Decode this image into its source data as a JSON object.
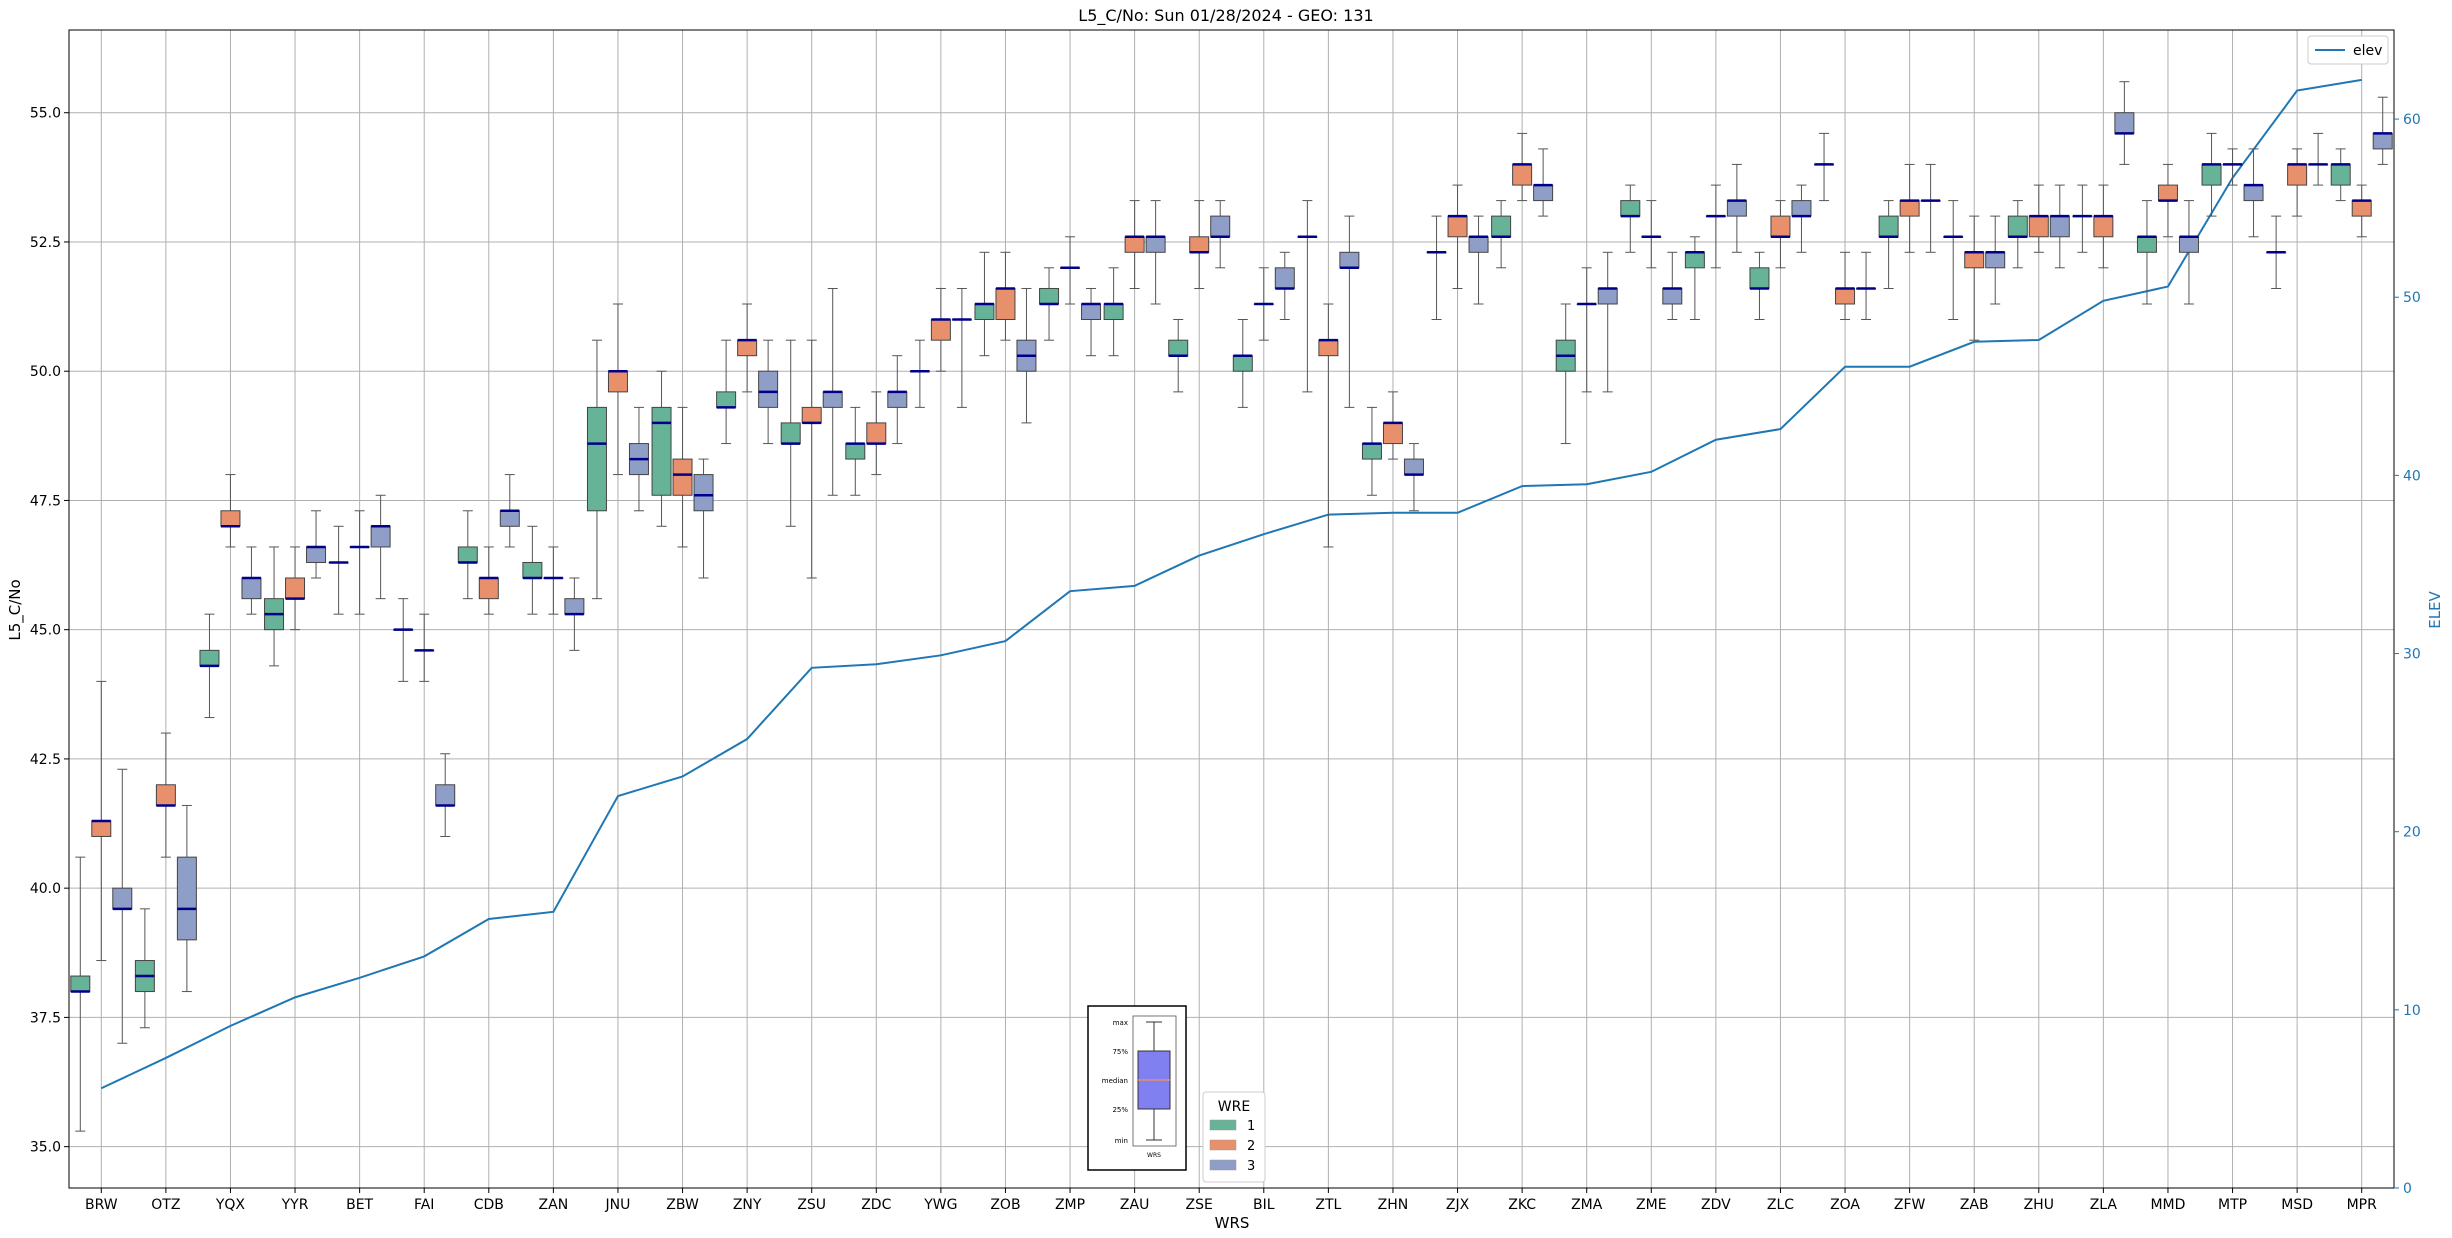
{
  "chart_data": {
    "type": "box",
    "title": "L5_C/No: Sun 01/28/2024 - GEO: 131",
    "xlabel": "WRS",
    "ylabel": "L5_C/No",
    "y2label": "ELEV",
    "ylim": [
      34.2,
      56.6
    ],
    "y2lim": [
      0,
      65
    ],
    "yticks": [
      "35.0",
      "37.5",
      "40.0",
      "42.5",
      "45.0",
      "47.5",
      "50.0",
      "52.5",
      "55.0"
    ],
    "y2ticks": [
      "0",
      "10",
      "20",
      "30",
      "40",
      "50",
      "60"
    ],
    "grid": true,
    "categories": [
      "BRW",
      "OTZ",
      "YQX",
      "YYR",
      "BET",
      "FAI",
      "CDB",
      "ZAN",
      "JNU",
      "ZBW",
      "ZNY",
      "ZSU",
      "ZDC",
      "YWG",
      "ZOB",
      "ZMP",
      "ZAU",
      "ZSE",
      "BIL",
      "ZTL",
      "ZHN",
      "ZJX",
      "ZKC",
      "ZMA",
      "ZME",
      "ZDV",
      "ZLC",
      "ZOA",
      "ZFW",
      "ZAB",
      "ZHU",
      "ZLA",
      "MMD",
      "MTP",
      "MSD",
      "MPR"
    ],
    "wre_colors": {
      "1": "#66b398",
      "2": "#e8906c",
      "3": "#8f9ec6"
    },
    "median_color": "#00008b",
    "elev_color": "#1f77b4",
    "legend_top": {
      "label": "elev",
      "placement": "top-right"
    },
    "legend_wre": {
      "title": "WRE",
      "entries": [
        "1",
        "2",
        "3"
      ],
      "placement": "lower-center"
    },
    "boxplot_key": {
      "labels": [
        "max",
        "75%",
        "median",
        "25%",
        "min"
      ],
      "xlabel": "WRS"
    },
    "elev": [
      5.6,
      7.3,
      9.1,
      10.7,
      11.8,
      13.0,
      15.1,
      15.5,
      22.0,
      23.1,
      25.2,
      29.2,
      29.4,
      29.9,
      30.7,
      33.5,
      33.8,
      35.5,
      36.7,
      37.8,
      37.9,
      37.9,
      39.4,
      39.5,
      40.2,
      42.0,
      42.6,
      46.1,
      46.1,
      47.5,
      47.6,
      49.8,
      50.6,
      56.7,
      61.6,
      62.2
    ],
    "boxes": [
      {
        "station": "BRW",
        "wre": 1,
        "min": 35.3,
        "q1": 38.0,
        "med": 38.0,
        "q3": 38.3,
        "max": 40.6
      },
      {
        "station": "BRW",
        "wre": 2,
        "min": 38.6,
        "q1": 41.0,
        "med": 41.3,
        "q3": 41.3,
        "max": 44.0
      },
      {
        "station": "BRW",
        "wre": 3,
        "min": 37.0,
        "q1": 39.6,
        "med": 39.6,
        "q3": 40.0,
        "max": 42.3
      },
      {
        "station": "OTZ",
        "wre": 1,
        "min": 37.3,
        "q1": 38.0,
        "med": 38.3,
        "q3": 38.6,
        "max": 39.6
      },
      {
        "station": "OTZ",
        "wre": 2,
        "min": 40.6,
        "q1": 41.6,
        "med": 41.6,
        "q3": 42.0,
        "max": 43.0
      },
      {
        "station": "OTZ",
        "wre": 3,
        "min": 38.0,
        "q1": 39.0,
        "med": 39.6,
        "q3": 40.6,
        "max": 41.6
      },
      {
        "station": "YQX",
        "wre": 1,
        "min": 43.3,
        "q1": 44.3,
        "med": 44.3,
        "q3": 44.6,
        "max": 45.3
      },
      {
        "station": "YQX",
        "wre": 2,
        "min": 46.6,
        "q1": 47.0,
        "med": 47.0,
        "q3": 47.3,
        "max": 48.0
      },
      {
        "station": "YQX",
        "wre": 3,
        "min": 45.3,
        "q1": 45.6,
        "med": 46.0,
        "q3": 46.0,
        "max": 46.6
      },
      {
        "station": "YYR",
        "wre": 1,
        "min": 44.3,
        "q1": 45.0,
        "med": 45.3,
        "q3": 45.6,
        "max": 46.6
      },
      {
        "station": "YYR",
        "wre": 2,
        "min": 45.0,
        "q1": 45.6,
        "med": 45.6,
        "q3": 46.0,
        "max": 46.6
      },
      {
        "station": "YYR",
        "wre": 3,
        "min": 46.0,
        "q1": 46.3,
        "med": 46.6,
        "q3": 46.6,
        "max": 47.3
      },
      {
        "station": "BET",
        "wre": 1,
        "min": 45.3,
        "q1": 46.3,
        "med": 46.3,
        "q3": 46.3,
        "max": 47.0
      },
      {
        "station": "BET",
        "wre": 2,
        "min": 45.3,
        "q1": 46.6,
        "med": 46.6,
        "q3": 46.6,
        "max": 47.3
      },
      {
        "station": "BET",
        "wre": 3,
        "min": 45.6,
        "q1": 46.6,
        "med": 47.0,
        "q3": 47.0,
        "max": 47.6
      },
      {
        "station": "FAI",
        "wre": 1,
        "min": 44.0,
        "q1": 45.0,
        "med": 45.0,
        "q3": 45.0,
        "max": 45.6
      },
      {
        "station": "FAI",
        "wre": 2,
        "min": 44.0,
        "q1": 44.6,
        "med": 44.6,
        "q3": 44.6,
        "max": 45.3
      },
      {
        "station": "FAI",
        "wre": 3,
        "min": 41.0,
        "q1": 41.6,
        "med": 41.6,
        "q3": 42.0,
        "max": 42.6
      },
      {
        "station": "CDB",
        "wre": 1,
        "min": 45.6,
        "q1": 46.3,
        "med": 46.3,
        "q3": 46.6,
        "max": 47.3
      },
      {
        "station": "CDB",
        "wre": 2,
        "min": 45.3,
        "q1": 45.6,
        "med": 46.0,
        "q3": 46.0,
        "max": 46.6
      },
      {
        "station": "CDB",
        "wre": 3,
        "min": 46.6,
        "q1": 47.0,
        "med": 47.3,
        "q3": 47.3,
        "max": 48.0
      },
      {
        "station": "ZAN",
        "wre": 1,
        "min": 45.3,
        "q1": 46.0,
        "med": 46.0,
        "q3": 46.3,
        "max": 47.0
      },
      {
        "station": "ZAN",
        "wre": 2,
        "min": 45.3,
        "q1": 46.0,
        "med": 46.0,
        "q3": 46.0,
        "max": 46.6
      },
      {
        "station": "ZAN",
        "wre": 3,
        "min": 44.6,
        "q1": 45.3,
        "med": 45.3,
        "q3": 45.6,
        "max": 46.0
      },
      {
        "station": "JNU",
        "wre": 1,
        "min": 45.6,
        "q1": 47.3,
        "med": 48.6,
        "q3": 49.3,
        "max": 50.6
      },
      {
        "station": "JNU",
        "wre": 2,
        "min": 48.0,
        "q1": 49.6,
        "med": 50.0,
        "q3": 50.0,
        "max": 51.3
      },
      {
        "station": "JNU",
        "wre": 3,
        "min": 47.3,
        "q1": 48.0,
        "med": 48.3,
        "q3": 48.6,
        "max": 49.3
      },
      {
        "station": "ZBW",
        "wre": 1,
        "min": 47.0,
        "q1": 47.6,
        "med": 49.0,
        "q3": 49.3,
        "max": 50.0
      },
      {
        "station": "ZBW",
        "wre": 2,
        "min": 46.6,
        "q1": 47.6,
        "med": 48.0,
        "q3": 48.3,
        "max": 49.3
      },
      {
        "station": "ZBW",
        "wre": 3,
        "min": 46.0,
        "q1": 47.3,
        "med": 47.6,
        "q3": 48.0,
        "max": 48.3
      },
      {
        "station": "ZNY",
        "wre": 1,
        "min": 48.6,
        "q1": 49.3,
        "med": 49.3,
        "q3": 49.6,
        "max": 50.6
      },
      {
        "station": "ZNY",
        "wre": 2,
        "min": 49.6,
        "q1": 50.3,
        "med": 50.6,
        "q3": 50.6,
        "max": 51.3
      },
      {
        "station": "ZNY",
        "wre": 3,
        "min": 48.6,
        "q1": 49.3,
        "med": 49.6,
        "q3": 50.0,
        "max": 50.6
      },
      {
        "station": "ZSU",
        "wre": 1,
        "min": 47.0,
        "q1": 48.6,
        "med": 48.6,
        "q3": 49.0,
        "max": 50.6
      },
      {
        "station": "ZSU",
        "wre": 2,
        "min": 46.0,
        "q1": 49.0,
        "med": 49.0,
        "q3": 49.3,
        "max": 50.6
      },
      {
        "station": "ZSU",
        "wre": 3,
        "min": 47.6,
        "q1": 49.3,
        "med": 49.6,
        "q3": 49.6,
        "max": 51.6
      },
      {
        "station": "ZDC",
        "wre": 1,
        "min": 47.6,
        "q1": 48.3,
        "med": 48.6,
        "q3": 48.6,
        "max": 49.3
      },
      {
        "station": "ZDC",
        "wre": 2,
        "min": 48.0,
        "q1": 48.6,
        "med": 48.6,
        "q3": 49.0,
        "max": 49.6
      },
      {
        "station": "ZDC",
        "wre": 3,
        "min": 48.6,
        "q1": 49.3,
        "med": 49.6,
        "q3": 49.6,
        "max": 50.3
      },
      {
        "station": "YWG",
        "wre": 1,
        "min": 49.3,
        "q1": 50.0,
        "med": 50.0,
        "q3": 50.0,
        "max": 50.6
      },
      {
        "station": "YWG",
        "wre": 2,
        "min": 50.0,
        "q1": 50.6,
        "med": 51.0,
        "q3": 51.0,
        "max": 51.6
      },
      {
        "station": "YWG",
        "wre": 3,
        "min": 49.3,
        "q1": 51.0,
        "med": 51.0,
        "q3": 51.0,
        "max": 51.6
      },
      {
        "station": "ZOB",
        "wre": 1,
        "min": 50.3,
        "q1": 51.0,
        "med": 51.3,
        "q3": 51.3,
        "max": 52.3
      },
      {
        "station": "ZOB",
        "wre": 2,
        "min": 50.6,
        "q1": 51.0,
        "med": 51.6,
        "q3": 51.6,
        "max": 52.3
      },
      {
        "station": "ZOB",
        "wre": 3,
        "min": 49.0,
        "q1": 50.0,
        "med": 50.3,
        "q3": 50.6,
        "max": 51.6
      },
      {
        "station": "ZMP",
        "wre": 1,
        "min": 50.6,
        "q1": 51.3,
        "med": 51.3,
        "q3": 51.6,
        "max": 52.0
      },
      {
        "station": "ZMP",
        "wre": 2,
        "min": 51.3,
        "q1": 52.0,
        "med": 52.0,
        "q3": 52.0,
        "max": 52.6
      },
      {
        "station": "ZMP",
        "wre": 3,
        "min": 50.3,
        "q1": 51.0,
        "med": 51.3,
        "q3": 51.3,
        "max": 51.6
      },
      {
        "station": "ZAU",
        "wre": 1,
        "min": 50.3,
        "q1": 51.0,
        "med": 51.3,
        "q3": 51.3,
        "max": 52.0
      },
      {
        "station": "ZAU",
        "wre": 2,
        "min": 51.6,
        "q1": 52.3,
        "med": 52.6,
        "q3": 52.6,
        "max": 53.3
      },
      {
        "station": "ZAU",
        "wre": 3,
        "min": 51.3,
        "q1": 52.3,
        "med": 52.6,
        "q3": 52.6,
        "max": 53.3
      },
      {
        "station": "ZSE",
        "wre": 1,
        "min": 49.6,
        "q1": 50.3,
        "med": 50.3,
        "q3": 50.6,
        "max": 51.0
      },
      {
        "station": "ZSE",
        "wre": 2,
        "min": 51.6,
        "q1": 52.3,
        "med": 52.3,
        "q3": 52.6,
        "max": 53.3
      },
      {
        "station": "ZSE",
        "wre": 3,
        "min": 52.0,
        "q1": 52.6,
        "med": 52.6,
        "q3": 53.0,
        "max": 53.3
      },
      {
        "station": "BIL",
        "wre": 1,
        "min": 49.3,
        "q1": 50.0,
        "med": 50.3,
        "q3": 50.3,
        "max": 51.0
      },
      {
        "station": "BIL",
        "wre": 2,
        "min": 50.6,
        "q1": 51.3,
        "med": 51.3,
        "q3": 51.3,
        "max": 52.0
      },
      {
        "station": "BIL",
        "wre": 3,
        "min": 51.0,
        "q1": 51.6,
        "med": 51.6,
        "q3": 52.0,
        "max": 52.3
      },
      {
        "station": "ZTL",
        "wre": 1,
        "min": 49.6,
        "q1": 52.6,
        "med": 52.6,
        "q3": 52.6,
        "max": 53.3
      },
      {
        "station": "ZTL",
        "wre": 2,
        "min": 46.6,
        "q1": 50.3,
        "med": 50.6,
        "q3": 50.6,
        "max": 51.3
      },
      {
        "station": "ZTL",
        "wre": 3,
        "min": 49.3,
        "q1": 52.0,
        "med": 52.0,
        "q3": 52.3,
        "max": 53.0
      },
      {
        "station": "ZHN",
        "wre": 1,
        "min": 47.6,
        "q1": 48.3,
        "med": 48.6,
        "q3": 48.6,
        "max": 49.3
      },
      {
        "station": "ZHN",
        "wre": 2,
        "min": 48.3,
        "q1": 48.6,
        "med": 49.0,
        "q3": 49.0,
        "max": 49.6
      },
      {
        "station": "ZHN",
        "wre": 3,
        "min": 47.3,
        "q1": 48.0,
        "med": 48.0,
        "q3": 48.3,
        "max": 48.6
      },
      {
        "station": "ZJX",
        "wre": 1,
        "min": 51.0,
        "q1": 52.3,
        "med": 52.3,
        "q3": 52.3,
        "max": 53.0
      },
      {
        "station": "ZJX",
        "wre": 2,
        "min": 51.6,
        "q1": 52.6,
        "med": 53.0,
        "q3": 53.0,
        "max": 53.6
      },
      {
        "station": "ZJX",
        "wre": 3,
        "min": 51.3,
        "q1": 52.3,
        "med": 52.6,
        "q3": 52.6,
        "max": 53.0
      },
      {
        "station": "ZKC",
        "wre": 1,
        "min": 52.0,
        "q1": 52.6,
        "med": 52.6,
        "q3": 53.0,
        "max": 53.3
      },
      {
        "station": "ZKC",
        "wre": 2,
        "min": 53.3,
        "q1": 53.6,
        "med": 54.0,
        "q3": 54.0,
        "max": 54.6
      },
      {
        "station": "ZKC",
        "wre": 3,
        "min": 53.0,
        "q1": 53.3,
        "med": 53.6,
        "q3": 53.6,
        "max": 54.3
      },
      {
        "station": "ZMA",
        "wre": 1,
        "min": 48.6,
        "q1": 50.0,
        "med": 50.3,
        "q3": 50.6,
        "max": 51.3
      },
      {
        "station": "ZMA",
        "wre": 2,
        "min": 49.6,
        "q1": 51.3,
        "med": 51.3,
        "q3": 51.3,
        "max": 52.0
      },
      {
        "station": "ZMA",
        "wre": 3,
        "min": 49.6,
        "q1": 51.3,
        "med": 51.6,
        "q3": 51.6,
        "max": 52.3
      },
      {
        "station": "ZME",
        "wre": 1,
        "min": 52.3,
        "q1": 53.0,
        "med": 53.0,
        "q3": 53.3,
        "max": 53.6
      },
      {
        "station": "ZME",
        "wre": 2,
        "min": 52.0,
        "q1": 52.6,
        "med": 52.6,
        "q3": 52.6,
        "max": 53.3
      },
      {
        "station": "ZME",
        "wre": 3,
        "min": 51.0,
        "q1": 51.3,
        "med": 51.6,
        "q3": 51.6,
        "max": 52.3
      },
      {
        "station": "ZDV",
        "wre": 1,
        "min": 51.0,
        "q1": 52.0,
        "med": 52.3,
        "q3": 52.3,
        "max": 52.6
      },
      {
        "station": "ZDV",
        "wre": 2,
        "min": 52.0,
        "q1": 53.0,
        "med": 53.0,
        "q3": 53.0,
        "max": 53.6
      },
      {
        "station": "ZDV",
        "wre": 3,
        "min": 52.3,
        "q1": 53.0,
        "med": 53.3,
        "q3": 53.3,
        "max": 54.0
      },
      {
        "station": "ZLC",
        "wre": 1,
        "min": 51.0,
        "q1": 51.6,
        "med": 51.6,
        "q3": 52.0,
        "max": 52.3
      },
      {
        "station": "ZLC",
        "wre": 2,
        "min": 52.0,
        "q1": 52.6,
        "med": 52.6,
        "q3": 53.0,
        "max": 53.3
      },
      {
        "station": "ZLC",
        "wre": 3,
        "min": 52.3,
        "q1": 53.0,
        "med": 53.0,
        "q3": 53.3,
        "max": 53.6
      },
      {
        "station": "ZOA",
        "wre": 1,
        "min": 53.3,
        "q1": 54.0,
        "med": 54.0,
        "q3": 54.0,
        "max": 54.6
      },
      {
        "station": "ZOA",
        "wre": 2,
        "min": 51.0,
        "q1": 51.3,
        "med": 51.6,
        "q3": 51.6,
        "max": 52.3
      },
      {
        "station": "ZOA",
        "wre": 3,
        "min": 51.0,
        "q1": 51.6,
        "med": 51.6,
        "q3": 51.6,
        "max": 52.3
      },
      {
        "station": "ZFW",
        "wre": 1,
        "min": 51.6,
        "q1": 52.6,
        "med": 52.6,
        "q3": 53.0,
        "max": 53.3
      },
      {
        "station": "ZFW",
        "wre": 2,
        "min": 52.3,
        "q1": 53.0,
        "med": 53.3,
        "q3": 53.3,
        "max": 54.0
      },
      {
        "station": "ZFW",
        "wre": 3,
        "min": 52.3,
        "q1": 53.3,
        "med": 53.3,
        "q3": 53.3,
        "max": 54.0
      },
      {
        "station": "ZAB",
        "wre": 1,
        "min": 51.0,
        "q1": 52.6,
        "med": 52.6,
        "q3": 52.6,
        "max": 53.3
      },
      {
        "station": "ZAB",
        "wre": 2,
        "min": 50.6,
        "q1": 52.0,
        "med": 52.3,
        "q3": 52.3,
        "max": 53.0
      },
      {
        "station": "ZAB",
        "wre": 3,
        "min": 51.3,
        "q1": 52.0,
        "med": 52.3,
        "q3": 52.3,
        "max": 53.0
      },
      {
        "station": "ZHU",
        "wre": 1,
        "min": 52.0,
        "q1": 52.6,
        "med": 52.6,
        "q3": 53.0,
        "max": 53.3
      },
      {
        "station": "ZHU",
        "wre": 2,
        "min": 52.3,
        "q1": 52.6,
        "med": 53.0,
        "q3": 53.0,
        "max": 53.6
      },
      {
        "station": "ZHU",
        "wre": 3,
        "min": 52.0,
        "q1": 52.6,
        "med": 53.0,
        "q3": 53.0,
        "max": 53.6
      },
      {
        "station": "ZLA",
        "wre": 1,
        "min": 52.3,
        "q1": 53.0,
        "med": 53.0,
        "q3": 53.0,
        "max": 53.6
      },
      {
        "station": "ZLA",
        "wre": 2,
        "min": 52.0,
        "q1": 52.6,
        "med": 53.0,
        "q3": 53.0,
        "max": 53.6
      },
      {
        "station": "ZLA",
        "wre": 3,
        "min": 54.0,
        "q1": 54.6,
        "med": 54.6,
        "q3": 55.0,
        "max": 55.6
      },
      {
        "station": "MMD",
        "wre": 1,
        "min": 51.3,
        "q1": 52.3,
        "med": 52.6,
        "q3": 52.6,
        "max": 53.3
      },
      {
        "station": "MMD",
        "wre": 2,
        "min": 52.6,
        "q1": 53.3,
        "med": 53.3,
        "q3": 53.6,
        "max": 54.0
      },
      {
        "station": "MMD",
        "wre": 3,
        "min": 51.3,
        "q1": 52.3,
        "med": 52.6,
        "q3": 52.6,
        "max": 53.3
      },
      {
        "station": "MTP",
        "wre": 1,
        "min": 53.0,
        "q1": 53.6,
        "med": 54.0,
        "q3": 54.0,
        "max": 54.6
      },
      {
        "station": "MTP",
        "wre": 2,
        "min": 53.6,
        "q1": 54.0,
        "med": 54.0,
        "q3": 54.0,
        "max": 54.3
      },
      {
        "station": "MTP",
        "wre": 3,
        "min": 52.6,
        "q1": 53.3,
        "med": 53.6,
        "q3": 53.6,
        "max": 54.3
      },
      {
        "station": "MSD",
        "wre": 1,
        "min": 51.6,
        "q1": 52.3,
        "med": 52.3,
        "q3": 52.3,
        "max": 53.0
      },
      {
        "station": "MSD",
        "wre": 2,
        "min": 53.0,
        "q1": 53.6,
        "med": 54.0,
        "q3": 54.0,
        "max": 54.3
      },
      {
        "station": "MSD",
        "wre": 3,
        "min": 53.6,
        "q1": 54.0,
        "med": 54.0,
        "q3": 54.0,
        "max": 54.6
      },
      {
        "station": "MPR",
        "wre": 1,
        "min": 53.3,
        "q1": 53.6,
        "med": 54.0,
        "q3": 54.0,
        "max": 54.3
      },
      {
        "station": "MPR",
        "wre": 2,
        "min": 52.6,
        "q1": 53.0,
        "med": 53.3,
        "q3": 53.3,
        "max": 53.6
      },
      {
        "station": "MPR",
        "wre": 3,
        "min": 54.0,
        "q1": 54.3,
        "med": 54.6,
        "q3": 54.6,
        "max": 55.3
      }
    ]
  }
}
